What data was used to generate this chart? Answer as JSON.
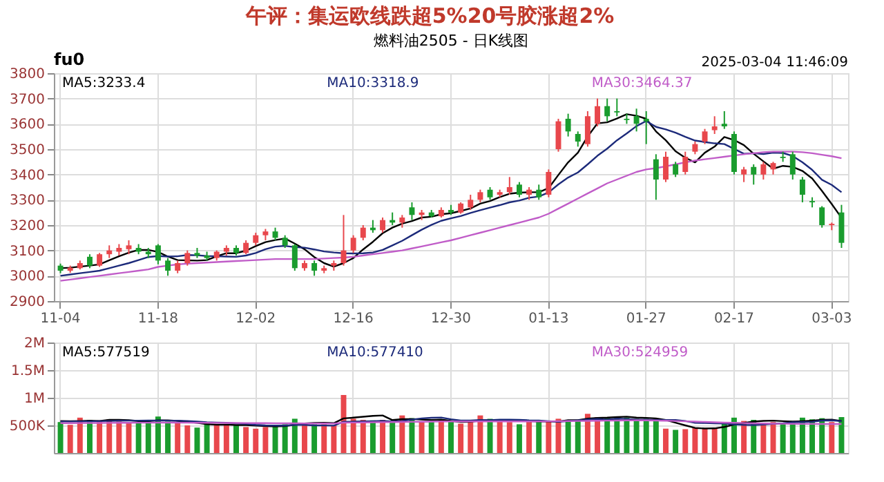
{
  "chart_data": [
    {
      "type": "candlestick",
      "title": "燃料油2505 - 日K线图",
      "annotations": [
        "fu0",
        "2025-03-04 11:46:09",
        "午评：集运欧线跌超5%20号胶涨超2%"
      ],
      "categories": [
        "11-04",
        null,
        null,
        null,
        null,
        null,
        null,
        null,
        null,
        null,
        "11-18",
        null,
        null,
        null,
        null,
        null,
        null,
        null,
        null,
        null,
        "12-02",
        null,
        null,
        null,
        null,
        null,
        null,
        null,
        null,
        null,
        "12-16",
        null,
        null,
        null,
        null,
        null,
        null,
        null,
        null,
        null,
        "12-30",
        null,
        null,
        null,
        null,
        null,
        null,
        null,
        null,
        null,
        "01-13",
        null,
        null,
        null,
        null,
        null,
        null,
        null,
        null,
        null,
        "01-27",
        null,
        null,
        null,
        null,
        null,
        null,
        null,
        null,
        "02-17",
        null,
        null,
        null,
        null,
        null,
        null,
        null,
        null,
        null,
        "03-03",
        null
      ],
      "ohlc": [
        [
          3040,
          3048,
          3010,
          3020
        ],
        [
          3020,
          3040,
          3012,
          3032
        ],
        [
          3030,
          3060,
          3025,
          3050
        ],
        [
          3075,
          3085,
          3030,
          3040
        ],
        [
          3040,
          3090,
          3035,
          3085
        ],
        [
          3085,
          3120,
          3070,
          3100
        ],
        [
          3095,
          3125,
          3080,
          3110
        ],
        [
          3105,
          3140,
          3085,
          3120
        ],
        [
          3110,
          3125,
          3085,
          3095
        ],
        [
          3095,
          3110,
          3070,
          3085
        ],
        [
          3120,
          3125,
          3045,
          3060
        ],
        [
          3060,
          3070,
          3000,
          3020
        ],
        [
          3020,
          3060,
          3010,
          3050
        ],
        [
          3050,
          3100,
          3040,
          3090
        ],
        [
          3090,
          3110,
          3070,
          3080
        ],
        [
          3080,
          3095,
          3060,
          3070
        ],
        [
          3070,
          3100,
          3060,
          3095
        ],
        [
          3095,
          3120,
          3080,
          3110
        ],
        [
          3110,
          3120,
          3080,
          3090
        ],
        [
          3090,
          3140,
          3085,
          3130
        ],
        [
          3130,
          3170,
          3120,
          3160
        ],
        [
          3160,
          3185,
          3140,
          3175
        ],
        [
          3175,
          3190,
          3140,
          3150
        ],
        [
          3150,
          3160,
          3110,
          3120
        ],
        [
          3120,
          3125,
          3020,
          3030
        ],
        [
          3030,
          3060,
          3020,
          3050
        ],
        [
          3050,
          3060,
          3000,
          3020
        ],
        [
          3020,
          3040,
          3010,
          3030
        ],
        [
          3040,
          3060,
          3020,
          3050
        ],
        [
          3050,
          3240,
          3040,
          3100
        ],
        [
          3100,
          3160,
          3090,
          3150
        ],
        [
          3150,
          3200,
          3140,
          3190
        ],
        [
          3190,
          3220,
          3170,
          3180
        ],
        [
          3180,
          3230,
          3170,
          3220
        ],
        [
          3220,
          3250,
          3200,
          3210
        ],
        [
          3210,
          3240,
          3190,
          3230
        ],
        [
          3270,
          3290,
          3220,
          3240
        ],
        [
          3240,
          3260,
          3220,
          3250
        ],
        [
          3250,
          3260,
          3230,
          3235
        ],
        [
          3235,
          3270,
          3230,
          3260
        ],
        [
          3260,
          3280,
          3240,
          3250
        ],
        [
          3250,
          3290,
          3245,
          3285
        ],
        [
          3270,
          3320,
          3260,
          3300
        ],
        [
          3300,
          3340,
          3290,
          3330
        ],
        [
          3340,
          3350,
          3300,
          3310
        ],
        [
          3320,
          3340,
          3310,
          3330
        ],
        [
          3330,
          3390,
          3320,
          3350
        ],
        [
          3360,
          3370,
          3310,
          3320
        ],
        [
          3320,
          3350,
          3300,
          3340
        ],
        [
          3340,
          3360,
          3300,
          3310
        ],
        [
          3320,
          3420,
          3310,
          3410
        ],
        [
          3500,
          3620,
          3490,
          3610
        ],
        [
          3620,
          3640,
          3550,
          3570
        ],
        [
          3560,
          3570,
          3510,
          3530
        ],
        [
          3520,
          3650,
          3510,
          3630
        ],
        [
          3600,
          3700,
          3590,
          3670
        ],
        [
          3670,
          3700,
          3610,
          3630
        ],
        [
          3650,
          3700,
          3630,
          3645
        ],
        [
          3620,
          3640,
          3600,
          3615
        ],
        [
          3630,
          3660,
          3570,
          3600
        ],
        [
          3620,
          3650,
          3520,
          3610
        ],
        [
          3460,
          3480,
          3300,
          3380
        ],
        [
          3380,
          3490,
          3370,
          3470
        ],
        [
          3440,
          3450,
          3390,
          3400
        ],
        [
          3410,
          3490,
          3400,
          3470
        ],
        [
          3490,
          3530,
          3480,
          3520
        ],
        [
          3530,
          3580,
          3520,
          3570
        ],
        [
          3575,
          3630,
          3560,
          3590
        ],
        [
          3600,
          3650,
          3580,
          3590
        ],
        [
          3560,
          3570,
          3400,
          3410
        ],
        [
          3400,
          3430,
          3370,
          3420
        ],
        [
          3430,
          3440,
          3360,
          3400
        ],
        [
          3400,
          3450,
          3380,
          3440
        ],
        [
          3420,
          3450,
          3400,
          3445
        ],
        [
          3470,
          3490,
          3450,
          3465
        ],
        [
          3480,
          3490,
          3380,
          3400
        ],
        [
          3380,
          3390,
          3290,
          3320
        ],
        [
          3295,
          3310,
          3270,
          3290
        ],
        [
          3270,
          3275,
          3190,
          3200
        ],
        [
          3200,
          3210,
          3180,
          3205
        ],
        [
          3250,
          3280,
          3110,
          3130
        ]
      ],
      "colors": [
        "#1a9c2e",
        "#e8474c",
        "#e8474c",
        "#1a9c2e",
        "#e8474c",
        "#e8474c",
        "#e8474c",
        "#e8474c",
        "#1a9c2e",
        "#1a9c2e",
        "#1a9c2e",
        "#1a9c2e",
        "#e8474c",
        "#e8474c",
        "#1a9c2e",
        "#1a9c2e",
        "#e8474c",
        "#e8474c",
        "#1a9c2e",
        "#e8474c",
        "#e8474c",
        "#e8474c",
        "#1a9c2e",
        "#1a9c2e",
        "#1a9c2e",
        "#e8474c",
        "#1a9c2e",
        "#e8474c",
        "#e8474c",
        "#e8474c",
        "#e8474c",
        "#e8474c",
        "#1a9c2e",
        "#e8474c",
        "#1a9c2e",
        "#e8474c",
        "#1a9c2e",
        "#e8474c",
        "#1a9c2e",
        "#e8474c",
        "#1a9c2e",
        "#e8474c",
        "#e8474c",
        "#e8474c",
        "#1a9c2e",
        "#e8474c",
        "#e8474c",
        "#1a9c2e",
        "#e8474c",
        "#1a9c2e",
        "#e8474c",
        "#e8474c",
        "#1a9c2e",
        "#1a9c2e",
        "#e8474c",
        "#e8474c",
        "#1a9c2e",
        "#1a9c2e",
        "#1a9c2e",
        "#1a9c2e",
        "#1a9c2e",
        "#1a9c2e",
        "#e8474c",
        "#1a9c2e",
        "#e8474c",
        "#e8474c",
        "#e8474c",
        "#e8474c",
        "#1a9c2e",
        "#1a9c2e",
        "#e8474c",
        "#1a9c2e",
        "#e8474c",
        "#e8474c",
        "#1a9c2e",
        "#1a9c2e",
        "#1a9c2e",
        "#1a9c2e",
        "#1a9c2e",
        "#e8474c",
        "#1a9c2e"
      ],
      "series": [
        {
          "name": "MA5:3233.4",
          "type": "line",
          "color": "#000000",
          "values": [
            3030,
            3032,
            3036,
            3040,
            3045,
            3061,
            3077,
            3091,
            3102,
            3102,
            3094,
            3076,
            3062,
            3061,
            3060,
            3062,
            3077,
            3089,
            3089,
            3099,
            3117,
            3133,
            3141,
            3147,
            3127,
            3105,
            3074,
            3050,
            3036,
            3050,
            3070,
            3104,
            3134,
            3168,
            3190,
            3206,
            3216,
            3230,
            3233,
            3243,
            3247,
            3256,
            3266,
            3285,
            3295,
            3311,
            3324,
            3328,
            3330,
            3330,
            3346,
            3398,
            3448,
            3486,
            3550,
            3602,
            3606,
            3621,
            3638,
            3632,
            3620,
            3570,
            3535,
            3492,
            3466,
            3448,
            3486,
            3510,
            3548,
            3536,
            3516,
            3482,
            3452,
            3423,
            3434,
            3430,
            3414,
            3384,
            3335,
            3283,
            3229
          ]
        },
        {
          "name": "MA10:3318.9",
          "type": "line",
          "color": "#1c2a7a",
          "values": [
            3000,
            3005,
            3010,
            3015,
            3020,
            3030,
            3040,
            3050,
            3062,
            3074,
            3078,
            3076,
            3077,
            3082,
            3081,
            3078,
            3077,
            3076,
            3075,
            3080,
            3090,
            3105,
            3115,
            3118,
            3113,
            3111,
            3104,
            3096,
            3092,
            3089,
            3088,
            3089,
            3092,
            3102,
            3120,
            3138,
            3160,
            3182,
            3201,
            3217,
            3227,
            3236,
            3248,
            3259,
            3269,
            3279,
            3290,
            3297,
            3308,
            3313,
            3329,
            3361,
            3388,
            3408,
            3440,
            3474,
            3502,
            3535,
            3562,
            3591,
            3611,
            3588,
            3578,
            3565,
            3549,
            3534,
            3528,
            3523,
            3520,
            3501,
            3482,
            3484,
            3481,
            3486,
            3485,
            3473,
            3448,
            3418,
            3379,
            3359,
            3330
          ]
        },
        {
          "name": "MA30:3464.37",
          "type": "line",
          "color": "#c05cc8",
          "values": [
            2980,
            2985,
            2990,
            2995,
            3000,
            3005,
            3010,
            3015,
            3020,
            3025,
            3035,
            3040,
            3045,
            3048,
            3050,
            3052,
            3054,
            3056,
            3058,
            3060,
            3062,
            3064,
            3066,
            3066,
            3066,
            3066,
            3066,
            3068,
            3070,
            3072,
            3075,
            3080,
            3085,
            3090,
            3095,
            3100,
            3108,
            3116,
            3124,
            3132,
            3140,
            3150,
            3160,
            3170,
            3180,
            3190,
            3200,
            3210,
            3220,
            3230,
            3245,
            3265,
            3285,
            3305,
            3325,
            3345,
            3365,
            3380,
            3395,
            3410,
            3420,
            3425,
            3432,
            3440,
            3448,
            3455,
            3460,
            3465,
            3470,
            3475,
            3480,
            3484,
            3488,
            3490,
            3490,
            3490,
            3488,
            3484,
            3478,
            3472,
            3464
          ]
        }
      ],
      "ylim": [
        2900,
        3800
      ],
      "yticks": [
        2900,
        3000,
        3100,
        3200,
        3300,
        3400,
        3500,
        3600,
        3700,
        3800
      ],
      "grid": true,
      "legend": "top"
    },
    {
      "type": "bar",
      "tick_labels": "y",
      "categories": [
        null,
        null,
        null,
        null,
        null,
        null,
        null,
        null,
        null,
        null,
        null,
        null,
        null,
        null,
        null,
        null,
        null,
        null,
        null,
        null,
        null,
        null,
        null,
        null,
        null,
        null,
        null,
        null,
        null,
        null,
        null,
        null,
        null,
        null,
        null,
        null,
        null,
        null,
        null,
        null,
        null,
        null,
        null,
        null,
        null,
        null,
        null,
        null,
        null,
        null,
        null,
        null,
        null,
        null,
        null,
        null,
        null,
        null,
        null,
        null,
        null,
        null,
        null,
        null,
        null,
        null,
        null,
        null,
        null,
        null,
        null,
        null,
        null,
        null,
        null,
        null,
        null,
        null,
        null,
        null,
        null
      ],
      "values": [
        560000,
        510000,
        640000,
        600000,
        590000,
        610000,
        570000,
        560000,
        560000,
        580000,
        660000,
        570000,
        540000,
        500000,
        460000,
        540000,
        520000,
        510000,
        500000,
        470000,
        440000,
        470000,
        510000,
        520000,
        620000,
        540000,
        520000,
        520000,
        500000,
        1050000,
        620000,
        600000,
        590000,
        600000,
        570000,
        680000,
        630000,
        550000,
        560000,
        600000,
        570000,
        530000,
        560000,
        680000,
        620000,
        600000,
        560000,
        520000,
        580000,
        570000,
        580000,
        620000,
        600000,
        600000,
        710000,
        650000,
        640000,
        650000,
        640000,
        620000,
        620000,
        620000,
        440000,
        420000,
        430000,
        460000,
        440000,
        460000,
        540000,
        640000,
        580000,
        600000,
        550000,
        560000,
        550000,
        580000,
        640000,
        610000,
        630000,
        560000,
        650000
      ],
      "colors": [
        "#1a9c2e",
        "#e8474c",
        "#e8474c",
        "#1a9c2e",
        "#e8474c",
        "#e8474c",
        "#e8474c",
        "#e8474c",
        "#1a9c2e",
        "#1a9c2e",
        "#1a9c2e",
        "#1a9c2e",
        "#e8474c",
        "#e8474c",
        "#1a9c2e",
        "#1a9c2e",
        "#e8474c",
        "#e8474c",
        "#1a9c2e",
        "#e8474c",
        "#e8474c",
        "#e8474c",
        "#1a9c2e",
        "#1a9c2e",
        "#1a9c2e",
        "#e8474c",
        "#1a9c2e",
        "#e8474c",
        "#e8474c",
        "#e8474c",
        "#e8474c",
        "#e8474c",
        "#1a9c2e",
        "#e8474c",
        "#1a9c2e",
        "#e8474c",
        "#1a9c2e",
        "#e8474c",
        "#1a9c2e",
        "#e8474c",
        "#1a9c2e",
        "#e8474c",
        "#e8474c",
        "#e8474c",
        "#1a9c2e",
        "#e8474c",
        "#e8474c",
        "#1a9c2e",
        "#e8474c",
        "#1a9c2e",
        "#e8474c",
        "#e8474c",
        "#1a9c2e",
        "#1a9c2e",
        "#e8474c",
        "#e8474c",
        "#1a9c2e",
        "#1a9c2e",
        "#1a9c2e",
        "#1a9c2e",
        "#1a9c2e",
        "#1a9c2e",
        "#e8474c",
        "#1a9c2e",
        "#e8474c",
        "#e8474c",
        "#e8474c",
        "#e8474c",
        "#1a9c2e",
        "#1a9c2e",
        "#e8474c",
        "#1a9c2e",
        "#e8474c",
        "#e8474c",
        "#1a9c2e",
        "#1a9c2e",
        "#1a9c2e",
        "#1a9c2e",
        "#1a9c2e",
        "#e8474c",
        "#1a9c2e"
      ],
      "series": [
        {
          "name": "MA5:577519",
          "type": "line",
          "color": "#000000",
          "values": [
            580000,
            575000,
            580000,
            585000,
            580000,
            600000,
            600000,
            594000,
            578000,
            576000,
            590000,
            590000,
            582000,
            566000,
            546000,
            522000,
            512000,
            514000,
            506000,
            506000,
            496000,
            488000,
            480000,
            486000,
            512000,
            534000,
            544000,
            548000,
            540000,
            626000,
            640000,
            656000,
            672000,
            680000,
            596000,
            612000,
            614000,
            606000,
            596000,
            604000,
            582000,
            562000,
            564000,
            588000,
            592000,
            598000,
            594000,
            596000,
            576000,
            570000,
            570000,
            570000,
            594000,
            594000,
            622000,
            636000,
            640000,
            650000,
            658000,
            640000,
            636000,
            626000,
            598000,
            548000,
            500000,
            454000,
            444000,
            446000,
            472000,
            516000,
            544000,
            568000,
            582000,
            586000,
            576000,
            568000,
            576000,
            586000,
            602000,
            604000,
            578000
          ]
        },
        {
          "name": "MA10:577410",
          "type": "line",
          "color": "#1c2a7a",
          "values": [
            570000,
            570000,
            572000,
            574000,
            576000,
            580000,
            584000,
            586000,
            586000,
            587000,
            588000,
            586000,
            584000,
            580000,
            570000,
            556000,
            551000,
            548000,
            536000,
            526000,
            509000,
            500000,
            496000,
            496000,
            509000,
            509000,
            500000,
            498000,
            495000,
            566000,
            568000,
            572000,
            576000,
            583000,
            568000,
            580000,
            605000,
            626000,
            638000,
            642000,
            611000,
            587000,
            589000,
            597000,
            594000,
            605000,
            604000,
            601000,
            592000,
            587000,
            576000,
            566000,
            579000,
            591000,
            607000,
            617000,
            605000,
            622000,
            617000,
            605000,
            603000,
            599000,
            596000,
            599000,
            579000,
            545000,
            542000,
            536000,
            535000,
            518000,
            508000,
            506000,
            514000,
            529000,
            538000,
            556000,
            560000,
            564000,
            587000,
            590000,
            577000
          ]
        },
        {
          "name": "MA30:524959",
          "type": "line",
          "color": "#c05cc8",
          "values": [
            540000,
            541000,
            542000,
            543000,
            544000,
            545000,
            546000,
            547000,
            548000,
            549000,
            550000,
            550000,
            549000,
            548000,
            547000,
            546000,
            545000,
            544000,
            543000,
            542000,
            541000,
            540000,
            539000,
            538000,
            537000,
            536000,
            535000,
            534000,
            533000,
            550000,
            552000,
            554000,
            556000,
            558000,
            560000,
            562000,
            564000,
            566000,
            568000,
            570000,
            572000,
            572000,
            572000,
            572000,
            572000,
            572000,
            572000,
            572000,
            572000,
            572000,
            574000,
            576000,
            578000,
            580000,
            582000,
            584000,
            586000,
            588000,
            590000,
            590000,
            590000,
            588000,
            584000,
            580000,
            574000,
            568000,
            562000,
            556000,
            550000,
            546000,
            542000,
            538000,
            534000,
            532000,
            530000,
            528000,
            527000,
            526000,
            525000,
            525000,
            525000
          ]
        }
      ],
      "ylim": [
        0,
        2000000
      ],
      "yticks": [
        {
          "value": 500000,
          "label": "500K"
        },
        {
          "value": 1000000,
          "label": "1M"
        },
        {
          "value": 1500000,
          "label": "1.5M"
        },
        {
          "value": 2000000,
          "label": "2M"
        }
      ],
      "grid": true,
      "legend": "top"
    }
  ]
}
